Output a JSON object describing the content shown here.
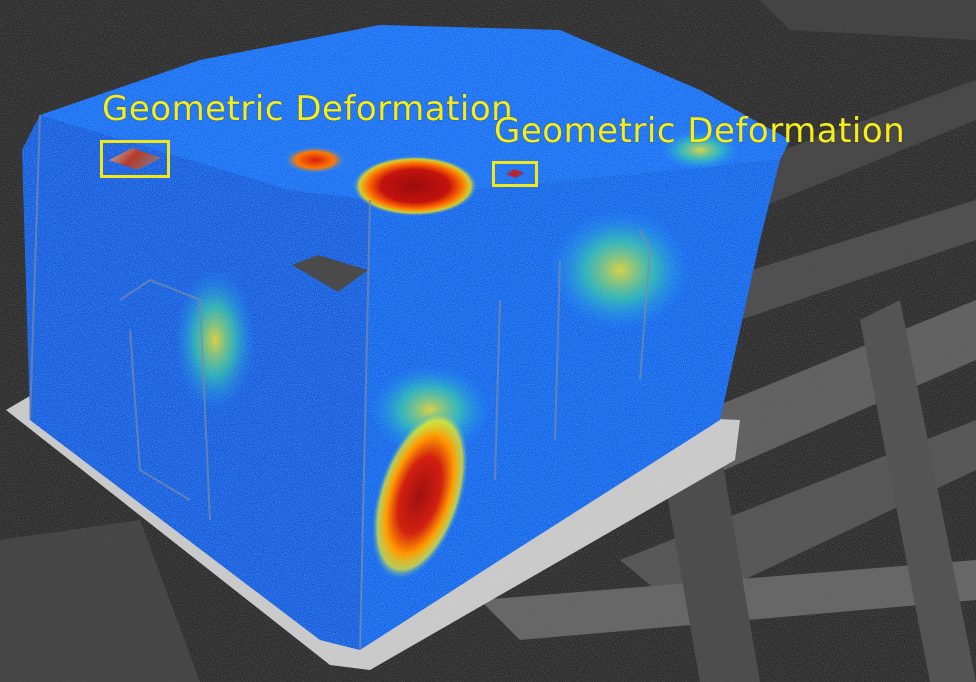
{
  "detections": [
    {
      "label": "Geometric Deformation"
    },
    {
      "label": "Geometric Deformation"
    }
  ]
}
